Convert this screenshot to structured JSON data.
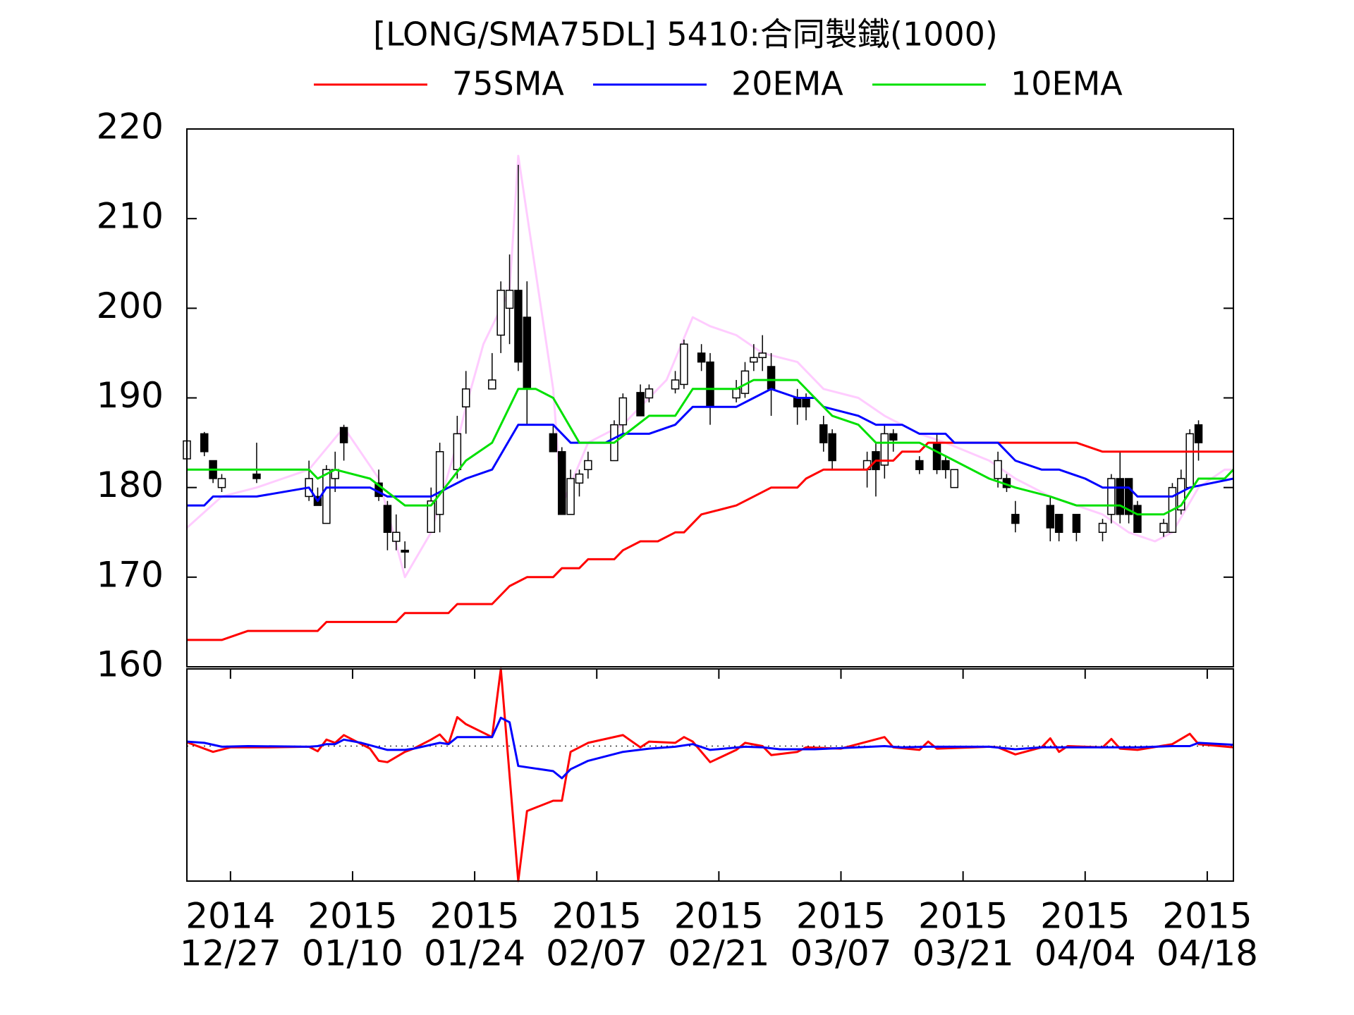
{
  "chart_data": [
    {
      "type": "candlestick",
      "title": "[LONG/SMA75DL] 5410:合同製鐵(1000)",
      "x": [
        "2014-12-22",
        "2014-12-24",
        "2014-12-25",
        "2014-12-26",
        "2014-12-30",
        "2015-01-05",
        "2015-01-06",
        "2015-01-07",
        "2015-01-08",
        "2015-01-09",
        "2015-01-13",
        "2015-01-14",
        "2015-01-15",
        "2015-01-16",
        "2015-01-19",
        "2015-01-20",
        "2015-01-22",
        "2015-01-23",
        "2015-01-26",
        "2015-01-27",
        "2015-01-28",
        "2015-01-29",
        "2015-01-30",
        "2015-02-02",
        "2015-02-03",
        "2015-02-04",
        "2015-02-05",
        "2015-02-06",
        "2015-02-09",
        "2015-02-10",
        "2015-02-12",
        "2015-02-13",
        "2015-02-16",
        "2015-02-17",
        "2015-02-19",
        "2015-02-20",
        "2015-02-23",
        "2015-02-24",
        "2015-02-25",
        "2015-02-26",
        "2015-02-27",
        "2015-03-02",
        "2015-03-03",
        "2015-03-05",
        "2015-03-06",
        "2015-03-10",
        "2015-03-11",
        "2015-03-12",
        "2015-03-13",
        "2015-03-16",
        "2015-03-18",
        "2015-03-19",
        "2015-03-20",
        "2015-03-25",
        "2015-03-26",
        "2015-03-27",
        "2015-03-31",
        "2015-04-01",
        "2015-04-03",
        "2015-04-06",
        "2015-04-07",
        "2015-04-08",
        "2015-04-09",
        "2015-04-10",
        "2015-04-13",
        "2015-04-14",
        "2015-04-15",
        "2015-04-16",
        "2015-04-17"
      ],
      "open": [
        183.2,
        186,
        183,
        180,
        181.5,
        179,
        179,
        176,
        181,
        186.7,
        180.5,
        178,
        174,
        173,
        175,
        177,
        182,
        189,
        191,
        197,
        200,
        202,
        199,
        186,
        184,
        177,
        180.5,
        182,
        183,
        187,
        190.6,
        190,
        191,
        191.5,
        195,
        194,
        190,
        190.5,
        194,
        194.5,
        193.5,
        190,
        190,
        187,
        186,
        182,
        184,
        182.5,
        186,
        183,
        185,
        183,
        180,
        181,
        181,
        177,
        178,
        177,
        177,
        175,
        177,
        181,
        181,
        178,
        175,
        175,
        177.5,
        180,
        187
      ],
      "high": [
        185.5,
        186.2,
        183,
        181.5,
        185,
        183,
        180,
        182.5,
        184,
        187,
        182,
        178.5,
        177,
        174,
        180,
        185,
        188,
        193,
        195,
        203,
        206,
        216,
        203,
        187,
        184.5,
        182,
        182,
        184,
        187.5,
        190.5,
        191.5,
        191.5,
        193,
        196.5,
        196,
        195,
        192,
        194,
        196,
        197,
        195,
        191,
        190.5,
        188,
        186.5,
        184,
        185,
        187,
        186.5,
        183.5,
        186,
        183.5,
        182,
        184,
        181.5,
        178.5,
        179,
        177,
        177,
        176.5,
        181.5,
        184,
        181,
        178.5,
        176.5,
        180.5,
        182,
        186.5,
        187.5
      ],
      "low": [
        183,
        183.5,
        180.5,
        179.5,
        180.5,
        178.5,
        178,
        176,
        179.5,
        183,
        178.5,
        173,
        173,
        171,
        175,
        175,
        181,
        186,
        191,
        195,
        196,
        193,
        187,
        184,
        177,
        177,
        179,
        181,
        183,
        186,
        188,
        189.5,
        190.5,
        191,
        193,
        187,
        189.5,
        190,
        193,
        193,
        188,
        187,
        187.5,
        184,
        182,
        180,
        179,
        181,
        184,
        181.5,
        181.5,
        181,
        180,
        180,
        179.5,
        175,
        174,
        174,
        174,
        174,
        176,
        176,
        176,
        175,
        174.5,
        175,
        177,
        180,
        183
      ],
      "close": [
        185.2,
        184,
        181,
        181,
        181,
        181,
        178,
        182,
        182,
        185,
        179,
        175,
        175,
        172.8,
        178.5,
        184,
        186,
        191,
        192,
        202,
        202,
        194,
        191,
        184,
        177,
        181,
        181.5,
        183,
        187,
        190,
        188,
        191,
        192,
        196,
        194,
        189,
        191,
        193,
        194.5,
        195,
        191,
        189,
        189,
        185,
        183,
        183,
        182,
        186,
        185.3,
        182,
        182,
        182,
        182,
        183,
        180,
        176,
        175.5,
        175,
        175,
        176,
        181,
        177,
        177,
        175,
        176,
        180,
        181,
        186,
        185
      ],
      "up_color": "#ffffff",
      "down_color": "#000000",
      "series": [
        {
          "color": "#ffccff",
          "x": [
            "2014-12-22",
            "2014-12-26",
            "2014-12-30",
            "2015-01-05",
            "2015-01-09",
            "2015-01-13",
            "2015-01-16",
            "2015-01-19",
            "2015-01-22",
            "2015-01-23",
            "2015-01-25",
            "2015-01-28",
            "2015-01-29",
            "2015-02-02",
            "2015-02-03",
            "2015-02-06",
            "2015-02-10",
            "2015-02-15",
            "2015-02-18",
            "2015-02-20",
            "2015-02-23",
            "2015-02-26",
            "2015-03-02",
            "2015-03-05",
            "2015-03-09",
            "2015-03-12",
            "2015-03-16",
            "2015-03-19",
            "2015-03-24",
            "2015-03-27",
            "2015-03-31",
            "2015-04-03",
            "2015-04-06",
            "2015-04-09",
            "2015-04-12",
            "2015-04-14",
            "2015-04-17",
            "2015-04-20",
            "2015-04-21"
          ],
          "values": [
            175.5,
            179,
            180,
            182,
            186.7,
            181,
            170,
            175,
            185,
            189,
            196,
            202,
            217,
            191,
            178,
            185,
            187,
            192,
            199,
            198,
            197,
            195,
            194,
            191,
            190,
            188,
            186,
            185,
            183,
            181,
            179,
            178,
            177,
            175,
            174,
            175,
            180,
            182,
            182
          ]
        },
        {
          "name": "75SMA",
          "color": "#ff0000",
          "x": [
            "2014-12-22",
            "2014-12-26",
            "2014-12-29",
            "2015-01-06",
            "2015-01-07",
            "2015-01-15",
            "2015-01-16",
            "2015-01-21",
            "2015-01-22",
            "2015-01-26",
            "2015-01-28",
            "2015-01-30",
            "2015-02-02",
            "2015-02-03",
            "2015-02-05",
            "2015-02-06",
            "2015-02-09",
            "2015-02-10",
            "2015-02-12",
            "2015-02-14",
            "2015-02-16",
            "2015-02-17",
            "2015-02-19",
            "2015-02-21",
            "2015-02-23",
            "2015-02-25",
            "2015-02-27",
            "2015-03-02",
            "2015-03-03",
            "2015-03-05",
            "2015-03-10",
            "2015-03-11",
            "2015-03-13",
            "2015-03-14",
            "2015-03-16",
            "2015-03-17",
            "2015-04-03",
            "2015-04-06",
            "2015-04-21"
          ],
          "values": [
            163,
            163,
            164,
            164,
            165,
            165,
            166,
            166,
            167,
            167,
            169,
            170,
            170,
            171,
            171,
            172,
            172,
            173,
            174,
            174,
            175,
            175,
            177,
            177.5,
            178,
            179,
            180,
            180,
            181,
            182,
            182,
            183,
            183,
            184,
            184,
            185,
            185,
            184,
            184
          ]
        },
        {
          "name": "20EMA",
          "color": "#0000ff",
          "x": [
            "2014-12-22",
            "2014-12-24",
            "2014-12-25",
            "2014-12-30",
            "2015-01-05",
            "2015-01-06",
            "2015-01-07",
            "2015-01-12",
            "2015-01-14",
            "2015-01-19",
            "2015-01-21",
            "2015-01-23",
            "2015-01-26",
            "2015-01-29",
            "2015-02-02",
            "2015-02-04",
            "2015-02-08",
            "2015-02-10",
            "2015-02-13",
            "2015-02-16",
            "2015-02-18",
            "2015-02-23",
            "2015-02-25",
            "2015-02-27",
            "2015-03-02",
            "2015-03-04",
            "2015-03-05",
            "2015-03-09",
            "2015-03-11",
            "2015-03-14",
            "2015-03-16",
            "2015-03-19",
            "2015-03-20",
            "2015-03-25",
            "2015-03-27",
            "2015-03-30",
            "2015-04-01",
            "2015-04-04",
            "2015-04-06",
            "2015-04-09",
            "2015-04-10",
            "2015-04-14",
            "2015-04-16",
            "2015-04-21"
          ],
          "values": [
            178,
            178,
            179,
            179,
            180,
            178.5,
            180,
            180,
            179,
            179,
            180,
            181,
            182,
            187,
            187,
            185,
            185,
            186,
            186,
            187,
            189,
            189,
            190,
            191,
            190,
            190,
            189,
            188,
            187,
            187,
            186,
            186,
            185,
            185,
            183,
            182,
            182,
            181,
            180,
            180,
            179,
            179,
            180,
            181
          ]
        },
        {
          "name": "10EMA",
          "color": "#00e000",
          "x": [
            "2014-12-22",
            "2015-01-05",
            "2015-01-06",
            "2015-01-08",
            "2015-01-12",
            "2015-01-16",
            "2015-01-19",
            "2015-01-23",
            "2015-01-26",
            "2015-01-29",
            "2015-01-31",
            "2015-02-02",
            "2015-02-05",
            "2015-02-09",
            "2015-02-13",
            "2015-02-16",
            "2015-02-18",
            "2015-02-23",
            "2015-02-25",
            "2015-03-02",
            "2015-03-06",
            "2015-03-09",
            "2015-03-11",
            "2015-03-16",
            "2015-03-18",
            "2015-03-20",
            "2015-03-24",
            "2015-03-27",
            "2015-03-31",
            "2015-04-03",
            "2015-04-08",
            "2015-04-10",
            "2015-04-13",
            "2015-04-15",
            "2015-04-17",
            "2015-04-20",
            "2015-04-21"
          ],
          "values": [
            182,
            182,
            181,
            182,
            181,
            178,
            178,
            183,
            185,
            191,
            191,
            190,
            185,
            185,
            188,
            188,
            191,
            191,
            192,
            192,
            188,
            187,
            185,
            185,
            184,
            183,
            181,
            180,
            179,
            178,
            178,
            177,
            177,
            178,
            181,
            181,
            182
          ]
        }
      ],
      "xlim": [
        "2014-12-22",
        "2015-04-21"
      ],
      "ylim": [
        160,
        220
      ],
      "yticks": [
        160,
        170,
        180,
        190,
        200,
        210,
        220
      ]
    },
    {
      "type": "line",
      "series": [
        {
          "color": "#ff0000",
          "x": [
            "2014-12-22",
            "2014-12-25",
            "2014-12-27",
            "2014-12-31",
            "2015-01-05",
            "2015-01-06",
            "2015-01-07",
            "2015-01-08",
            "2015-01-09",
            "2015-01-12",
            "2015-01-13",
            "2015-01-14",
            "2015-01-16",
            "2015-01-17",
            "2015-01-19",
            "2015-01-20",
            "2015-01-21",
            "2015-01-22",
            "2015-01-23",
            "2015-01-26",
            "2015-01-27",
            "2015-01-29",
            "2015-01-30",
            "2015-02-02",
            "2015-02-03",
            "2015-02-04",
            "2015-02-06",
            "2015-02-10",
            "2015-02-12",
            "2015-02-13",
            "2015-02-16",
            "2015-02-17",
            "2015-02-18",
            "2015-02-20",
            "2015-02-23",
            "2015-02-24",
            "2015-02-26",
            "2015-02-27",
            "2015-03-02",
            "2015-03-03",
            "2015-03-07",
            "2015-03-12",
            "2015-03-13",
            "2015-03-16",
            "2015-03-17",
            "2015-03-18",
            "2015-03-24",
            "2015-03-25",
            "2015-03-27",
            "2015-03-30",
            "2015-03-31",
            "2015-04-01",
            "2015-04-02",
            "2015-04-06",
            "2015-04-07",
            "2015-04-08",
            "2015-04-10",
            "2015-04-14",
            "2015-04-16",
            "2015-04-17",
            "2015-04-21"
          ],
          "values": [
            0.6,
            -0.9,
            -0.2,
            -0.2,
            -0.1,
            -0.8,
            1.0,
            0.5,
            1.7,
            -0.4,
            -2.3,
            -2.5,
            -0.9,
            -0.4,
            1.0,
            1.8,
            0.3,
            4.5,
            3.4,
            1.4,
            12,
            -21,
            -10.1,
            -8.5,
            -8.5,
            -0.9,
            0.5,
            1.7,
            -0.2,
            0.7,
            0.5,
            1.4,
            0.7,
            -2.5,
            -0.6,
            0.5,
            0.0,
            -1.4,
            -0.9,
            -0.2,
            -0.4,
            1.4,
            -0.2,
            -0.6,
            0.7,
            -0.4,
            -0.1,
            -0.2,
            -1.3,
            -0.2,
            1.2,
            -0.9,
            0.0,
            -0.2,
            1.1,
            -0.4,
            -0.6,
            0.3,
            1.9,
            0.3,
            -0.2
          ]
        },
        {
          "color": "#0000ff",
          "x": [
            "2014-12-22",
            "2014-12-24",
            "2014-12-26",
            "2014-12-29",
            "2015-01-05",
            "2015-01-06",
            "2015-01-07",
            "2015-01-08",
            "2015-01-09",
            "2015-01-11",
            "2015-01-14",
            "2015-01-16",
            "2015-01-17",
            "2015-01-20",
            "2015-01-21",
            "2015-01-22",
            "2015-01-26",
            "2015-01-27",
            "2015-01-28",
            "2015-01-29",
            "2015-02-02",
            "2015-02-03",
            "2015-02-04",
            "2015-02-06",
            "2015-02-10",
            "2015-02-13",
            "2015-02-16",
            "2015-02-18",
            "2015-02-20",
            "2015-02-24",
            "2015-02-26",
            "2015-02-28",
            "2015-03-04",
            "2015-03-12",
            "2015-03-14",
            "2015-03-17",
            "2015-03-24",
            "2015-03-27",
            "2015-03-30",
            "2015-04-06",
            "2015-04-08",
            "2015-04-10",
            "2015-04-14",
            "2015-04-16",
            "2015-04-17",
            "2015-04-21"
          ],
          "values": [
            0.7,
            0.5,
            -0.1,
            0.0,
            -0.1,
            0.0,
            0.3,
            0.3,
            1.0,
            0.5,
            -0.6,
            -0.6,
            -0.4,
            0.5,
            0.3,
            1.4,
            1.4,
            4.4,
            3.7,
            -3.1,
            -3.9,
            -5.0,
            -3.6,
            -2.3,
            -0.9,
            -0.4,
            -0.1,
            0.3,
            -0.6,
            -0.1,
            -0.2,
            -0.5,
            -0.5,
            0.0,
            -0.2,
            -0.1,
            -0.1,
            -0.5,
            -0.2,
            -0.2,
            -0.2,
            -0.2,
            0.0,
            0.0,
            0.5,
            0.2
          ]
        }
      ],
      "hline": 0,
      "xlim": [
        "2014-12-22",
        "2015-04-21"
      ],
      "ylim": [
        -21,
        12
      ],
      "xticks": [
        {
          "value": "2014-12-27",
          "label": [
            "2014",
            "12/27"
          ]
        },
        {
          "value": "2015-01-10",
          "label": [
            "2015",
            "01/10"
          ]
        },
        {
          "value": "2015-01-24",
          "label": [
            "2015",
            "01/24"
          ]
        },
        {
          "value": "2015-02-07",
          "label": [
            "2015",
            "02/07"
          ]
        },
        {
          "value": "2015-02-21",
          "label": [
            "2015",
            "02/21"
          ]
        },
        {
          "value": "2015-03-07",
          "label": [
            "2015",
            "03/07"
          ]
        },
        {
          "value": "2015-03-21",
          "label": [
            "2015",
            "03/21"
          ]
        },
        {
          "value": "2015-04-04",
          "label": [
            "2015",
            "04/04"
          ]
        },
        {
          "value": "2015-04-18",
          "label": [
            "2015",
            "04/18"
          ]
        }
      ]
    }
  ]
}
